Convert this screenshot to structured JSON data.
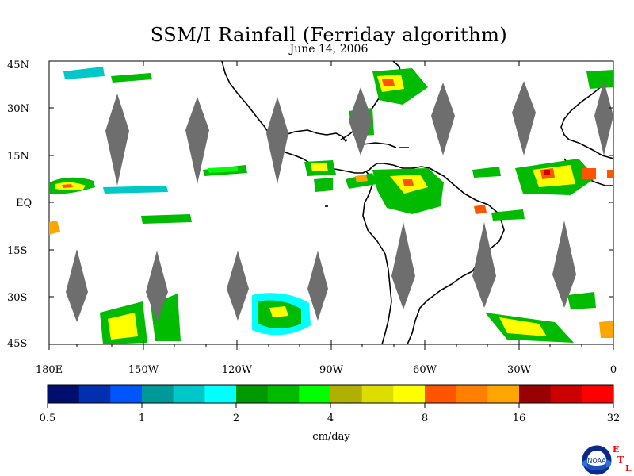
{
  "title": "SSM/I Rainfall (Ferriday algorithm)",
  "subtitle": "June 14, 2006",
  "lat_labels": [
    "45N",
    "30N",
    "15N",
    "EQ",
    "15S",
    "30S",
    "45S"
  ],
  "lon_labels": [
    "180E",
    "150W",
    "120W",
    "90W",
    "60W",
    "30W",
    "0"
  ],
  "colorbar": {
    "colors": [
      "#000f6e",
      "#0030b0",
      "#0055ff",
      "#00999a",
      "#00c8c8",
      "#00ffff",
      "#009900",
      "#00bb00",
      "#00ff00",
      "#b0b000",
      "#dddd00",
      "#ffff00",
      "#ff5500",
      "#ff7f00",
      "#ffa500",
      "#990000",
      "#cc0000",
      "#ff0000"
    ],
    "tick_labels": [
      "0.5",
      "1",
      "2",
      "4",
      "8",
      "16",
      "32"
    ],
    "unit": "cm/day"
  },
  "logo": {
    "text": "NOAA",
    "side_letters": [
      "E",
      "T",
      "L"
    ]
  }
}
